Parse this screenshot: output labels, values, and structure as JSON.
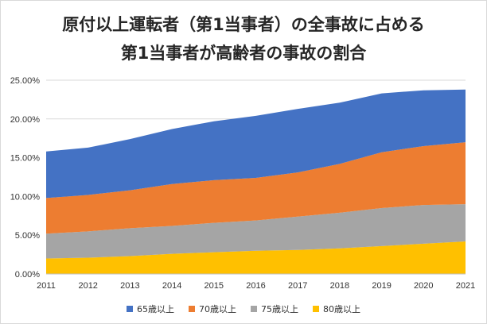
{
  "chart_data": {
    "type": "area",
    "stacked": true,
    "title_lines": [
      "原付以上運転者（第1当事者）の全事故に占める",
      "第1当事者が高齢者の事故の割合"
    ],
    "x": [
      "2011",
      "2012",
      "2013",
      "2014",
      "2015",
      "2016",
      "2017",
      "2018",
      "2019",
      "2020",
      "2021"
    ],
    "ylim": [
      0,
      25
    ],
    "y_ticks": [
      "0.00%",
      "5.00%",
      "10.00%",
      "15.00%",
      "20.00%",
      "25.00%"
    ],
    "grid": true,
    "legend_position": "bottom",
    "series": [
      {
        "name": "80歳以上",
        "color": "#FFC000",
        "values": [
          2.0,
          2.1,
          2.3,
          2.6,
          2.8,
          3.0,
          3.1,
          3.3,
          3.6,
          3.9,
          4.2
        ]
      },
      {
        "name": "75歳以上",
        "color": "#A5A5A5",
        "values": [
          3.2,
          3.4,
          3.6,
          3.6,
          3.8,
          3.9,
          4.3,
          4.6,
          4.9,
          5.0,
          4.8
        ]
      },
      {
        "name": "70歳以上",
        "color": "#ED7D31",
        "values": [
          4.6,
          4.7,
          4.9,
          5.4,
          5.5,
          5.5,
          5.7,
          6.3,
          7.2,
          7.6,
          8.0
        ]
      },
      {
        "name": "65歳以上",
        "color": "#4472C4",
        "values": [
          6.0,
          6.1,
          6.6,
          7.1,
          7.6,
          8.0,
          8.2,
          7.9,
          7.6,
          7.2,
          6.8
        ]
      }
    ],
    "legend_order": [
      "65歳以上",
      "70歳以上",
      "75歳以上",
      "80歳以上"
    ]
  }
}
